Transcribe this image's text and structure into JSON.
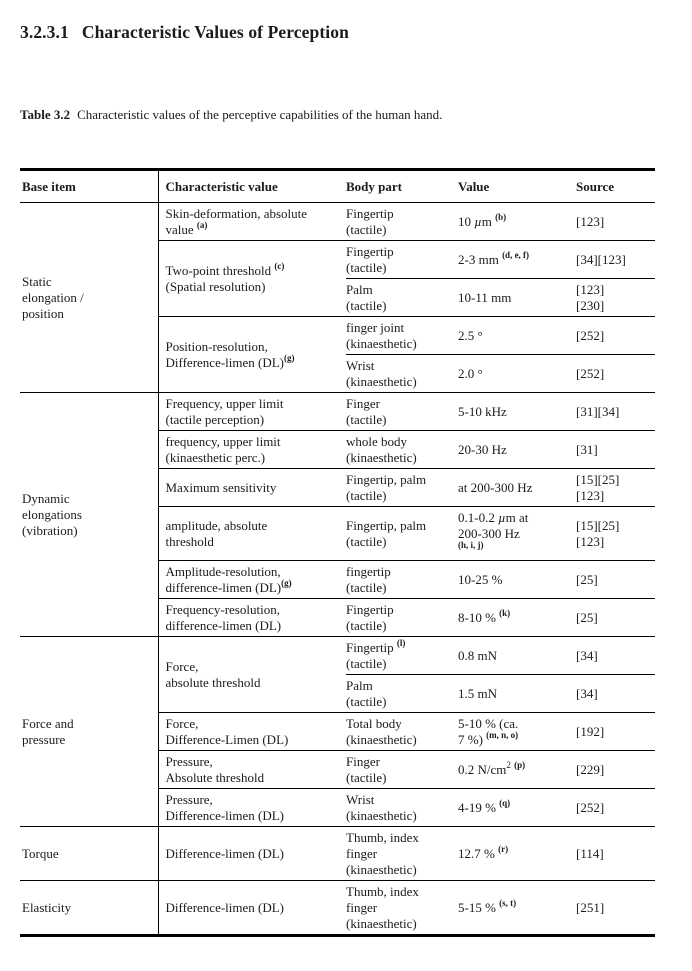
{
  "heading": {
    "number": "3.2.3.1",
    "title": "Characteristic Values of Perception"
  },
  "caption": {
    "label": "Table 3.2",
    "text": "Characteristic values of the perceptive capabilities of the human hand."
  },
  "colors": {
    "text": "#1b1b20",
    "rule": "#000000"
  },
  "table": {
    "columns": [
      "Base item",
      "Characteristic value",
      "Body part",
      "Value",
      "Source"
    ],
    "groups": [
      {
        "base": "Static\nelongation /\nposition",
        "characteristics": [
          {
            "label": "Skin-deformation, absolute\nvalue ^{b:(a)}",
            "entries": [
              {
                "body": "Fingertip\n(tactile)",
                "value": "10 µm ^{b:(b)}",
                "source": "[123]"
              }
            ]
          },
          {
            "label": "Two-point threshold ^{b:(c)}\n(Spatial resolution)",
            "entries": [
              {
                "body": "Fingertip\n(tactile)",
                "value": "2-3 mm ^{b:(d, e, f)}",
                "source": "[34][123]"
              },
              {
                "body": "Palm\n(tactile)",
                "value": "10-11 mm",
                "source": "[123]\n[230]"
              }
            ]
          },
          {
            "label": "Position-resolution,\nDifference-limen (DL)^{b:(g)}",
            "entries": [
              {
                "body": "finger joint\n(kinaesthetic)",
                "value": "2.5 °",
                "source": "[252]"
              },
              {
                "body": "Wrist\n(kinaesthetic)",
                "value": "2.0 °",
                "source": "[252]"
              }
            ]
          }
        ]
      },
      {
        "base": "Dynamic\nelongations\n(vibration)",
        "characteristics": [
          {
            "label": "Frequency, upper limit\n(tactile perception)",
            "entries": [
              {
                "body": "Finger\n(tactile)",
                "value": "5-10 kHz",
                "source": "[31][34]"
              }
            ]
          },
          {
            "label": "frequency, upper limit\n(kinaesthetic perc.)",
            "entries": [
              {
                "body": "whole body\n(kinaesthetic)",
                "value": "20-30 Hz",
                "source": "[31]"
              }
            ]
          },
          {
            "label": "Maximum sensitivity",
            "entries": [
              {
                "body": "Fingertip, palm\n(tactile)",
                "value": "at 200-300 Hz",
                "source": "[15][25]\n[123]"
              }
            ]
          },
          {
            "label": "amplitude, absolute\nthreshold",
            "entries": [
              {
                "body": "Fingertip, palm\n(tactile)",
                "value": "0.1-0.2 µm at\n200-300 Hz\n^{b:(h, i, j)}",
                "source": "[15][25]\n[123]"
              }
            ]
          },
          {
            "label": "Amplitude-resolution,\ndifference-limen (DL)^{b:(g)}",
            "entries": [
              {
                "body": "fingertip\n(tactile)",
                "value": "10-25 %",
                "source": "[25]"
              }
            ]
          },
          {
            "label": "Frequency-resolution,\ndifference-limen (DL)",
            "entries": [
              {
                "body": "Fingertip\n(tactile)",
                "value": "8-10 % ^{b:(k)}",
                "source": "[25]"
              }
            ]
          }
        ]
      },
      {
        "base": "Force and\npressure",
        "characteristics": [
          {
            "label": "Force,\nabsolute threshold",
            "entries": [
              {
                "body": "Fingertip ^{b:(l)}\n(tactile)",
                "value": "0.8 mN",
                "source": "[34]"
              },
              {
                "body": "Palm\n(tactile)",
                "value": "1.5 mN",
                "source": "[34]"
              }
            ]
          },
          {
            "label": "Force,\nDifference-Limen (DL)",
            "entries": [
              {
                "body": "Total body\n(kinaesthetic)",
                "value": "5-10 % (ca.\n7 %) ^{b:(m, n, o)}",
                "source": "[192]"
              }
            ]
          },
          {
            "label": "Pressure,\nAbsolute threshold",
            "entries": [
              {
                "body": "Finger\n(tactile)",
                "value": "0.2 N/cm^{2} ^{b:(p)}",
                "source": "[229]"
              }
            ]
          },
          {
            "label": "Pressure,\nDifference-limen (DL)",
            "entries": [
              {
                "body": "Wrist\n(kinaesthetic)",
                "value": "4-19 % ^{b:(q)}",
                "source": "[252]"
              }
            ]
          }
        ]
      },
      {
        "base": "Torque",
        "characteristics": [
          {
            "label": "Difference-limen (DL)",
            "entries": [
              {
                "body": "Thumb, index\nfinger\n(kinaesthetic)",
                "value": "12.7 % ^{b:(r)}",
                "source": "[114]"
              }
            ]
          }
        ]
      },
      {
        "base": "Elasticity",
        "characteristics": [
          {
            "label": "Difference-limen (DL)",
            "entries": [
              {
                "body": "Thumb, index\nfinger\n(kinaesthetic)",
                "value": "5-15 % ^{b:(s, t)}",
                "source": "[251]"
              }
            ]
          }
        ]
      }
    ]
  }
}
